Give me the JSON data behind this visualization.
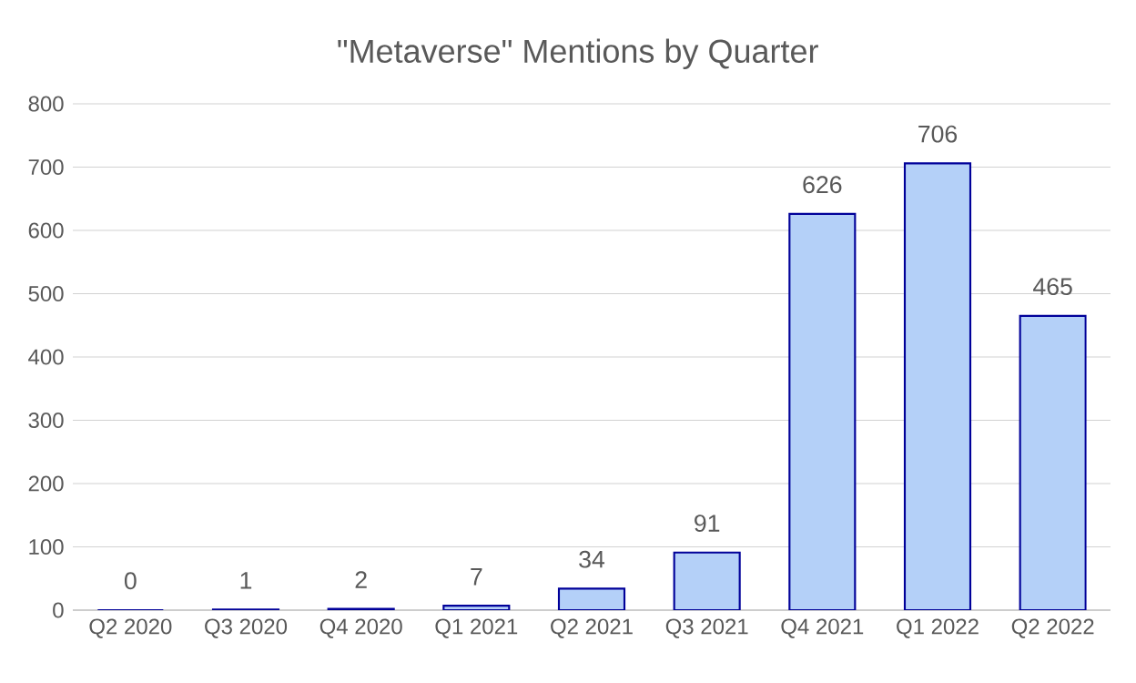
{
  "chart_data": {
    "type": "bar",
    "title": "\"Metaverse\" Mentions by Quarter",
    "categories": [
      "Q2 2020",
      "Q3 2020",
      "Q4 2020",
      "Q1 2021",
      "Q2 2021",
      "Q3 2021",
      "Q4 2021",
      "Q1 2022",
      "Q2 2022"
    ],
    "values": [
      0,
      1,
      2,
      7,
      34,
      91,
      626,
      706,
      465
    ],
    "color": "#b4d0f8",
    "ylim": [
      0,
      800
    ],
    "yticks": [
      0,
      100,
      200,
      300,
      400,
      500,
      600,
      700,
      800
    ],
    "grid": "y",
    "data_labels": true
  }
}
